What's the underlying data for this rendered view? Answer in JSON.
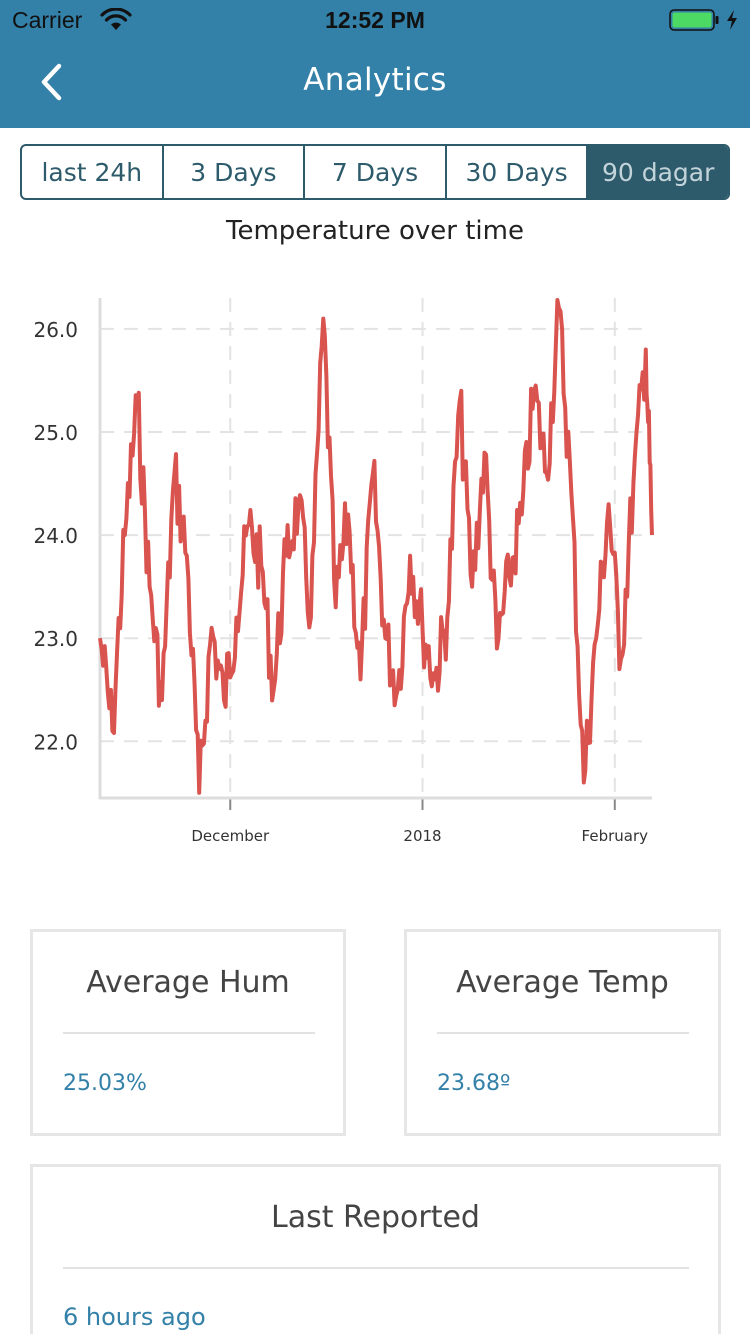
{
  "status_bar": {
    "carrier": "Carrier",
    "time": "12:52 PM",
    "battery_color": "#4cd964"
  },
  "nav": {
    "title": "Analytics",
    "back_icon": "chevron-left-icon",
    "background": "#3380a8"
  },
  "range_tabs": [
    {
      "label": "last 24h",
      "selected": false
    },
    {
      "label": "3 Days",
      "selected": false
    },
    {
      "label": "7 Days",
      "selected": false
    },
    {
      "label": "30 Days",
      "selected": false
    },
    {
      "label": "90 dagar",
      "selected": true
    }
  ],
  "chart_data": {
    "type": "line",
    "title": "Temperature over time",
    "xlabel": "",
    "ylabel": "",
    "ylim": [
      21.45,
      26.3
    ],
    "yticks": [
      "22.0",
      "23.0",
      "24.0",
      "25.0",
      "26.0"
    ],
    "xticks": [
      "December",
      "2018",
      "February"
    ],
    "x_range": [
      "2017-11-10",
      "2018-02-07"
    ],
    "grid": true,
    "line_color": "#d9534f",
    "series": [
      {
        "x": [
          "2017-11-10",
          "2017-11-12",
          "2017-11-14",
          "2017-11-16",
          "2017-11-18",
          "2017-11-20",
          "2017-11-22",
          "2017-11-24",
          "2017-11-26",
          "2017-11-28",
          "2017-11-30",
          "2017-12-02",
          "2017-12-04",
          "2017-12-06",
          "2017-12-08",
          "2017-12-10",
          "2017-12-12",
          "2017-12-14",
          "2017-12-16",
          "2017-12-18",
          "2017-12-20",
          "2017-12-22",
          "2017-12-24",
          "2017-12-26",
          "2017-12-28",
          "2017-12-30",
          "2018-01-01",
          "2018-01-03",
          "2018-01-05",
          "2018-01-07",
          "2018-01-09",
          "2018-01-11",
          "2018-01-13",
          "2018-01-15",
          "2018-01-17",
          "2018-01-19",
          "2018-01-21",
          "2018-01-23",
          "2018-01-25",
          "2018-01-27",
          "2018-01-29",
          "2018-01-31",
          "2018-02-02",
          "2018-02-04",
          "2018-02-06",
          "2018-02-07"
        ],
        "values": [
          23.0,
          22.1,
          24.0,
          25.3,
          23.5,
          22.4,
          24.6,
          23.8,
          21.5,
          23.1,
          22.4,
          23.2,
          24.1,
          23.7,
          22.5,
          23.8,
          24.3,
          23.2,
          26.1,
          23.3,
          24.2,
          22.6,
          24.6,
          23.0,
          22.5,
          23.8,
          23.1,
          22.6,
          23.2,
          25.3,
          23.5,
          24.8,
          22.9,
          23.6,
          24.2,
          25.4,
          24.6,
          26.2,
          24.4,
          21.6,
          23.0,
          24.3,
          22.8,
          24.5,
          25.8,
          24.0
        ]
      }
    ]
  },
  "cards": {
    "avg_hum": {
      "title": "Average Hum",
      "value": "25.03%"
    },
    "avg_temp": {
      "title": "Average Temp",
      "value": "23.68º"
    },
    "last_reported": {
      "title": "Last Reported",
      "value": "6 hours ago"
    }
  }
}
